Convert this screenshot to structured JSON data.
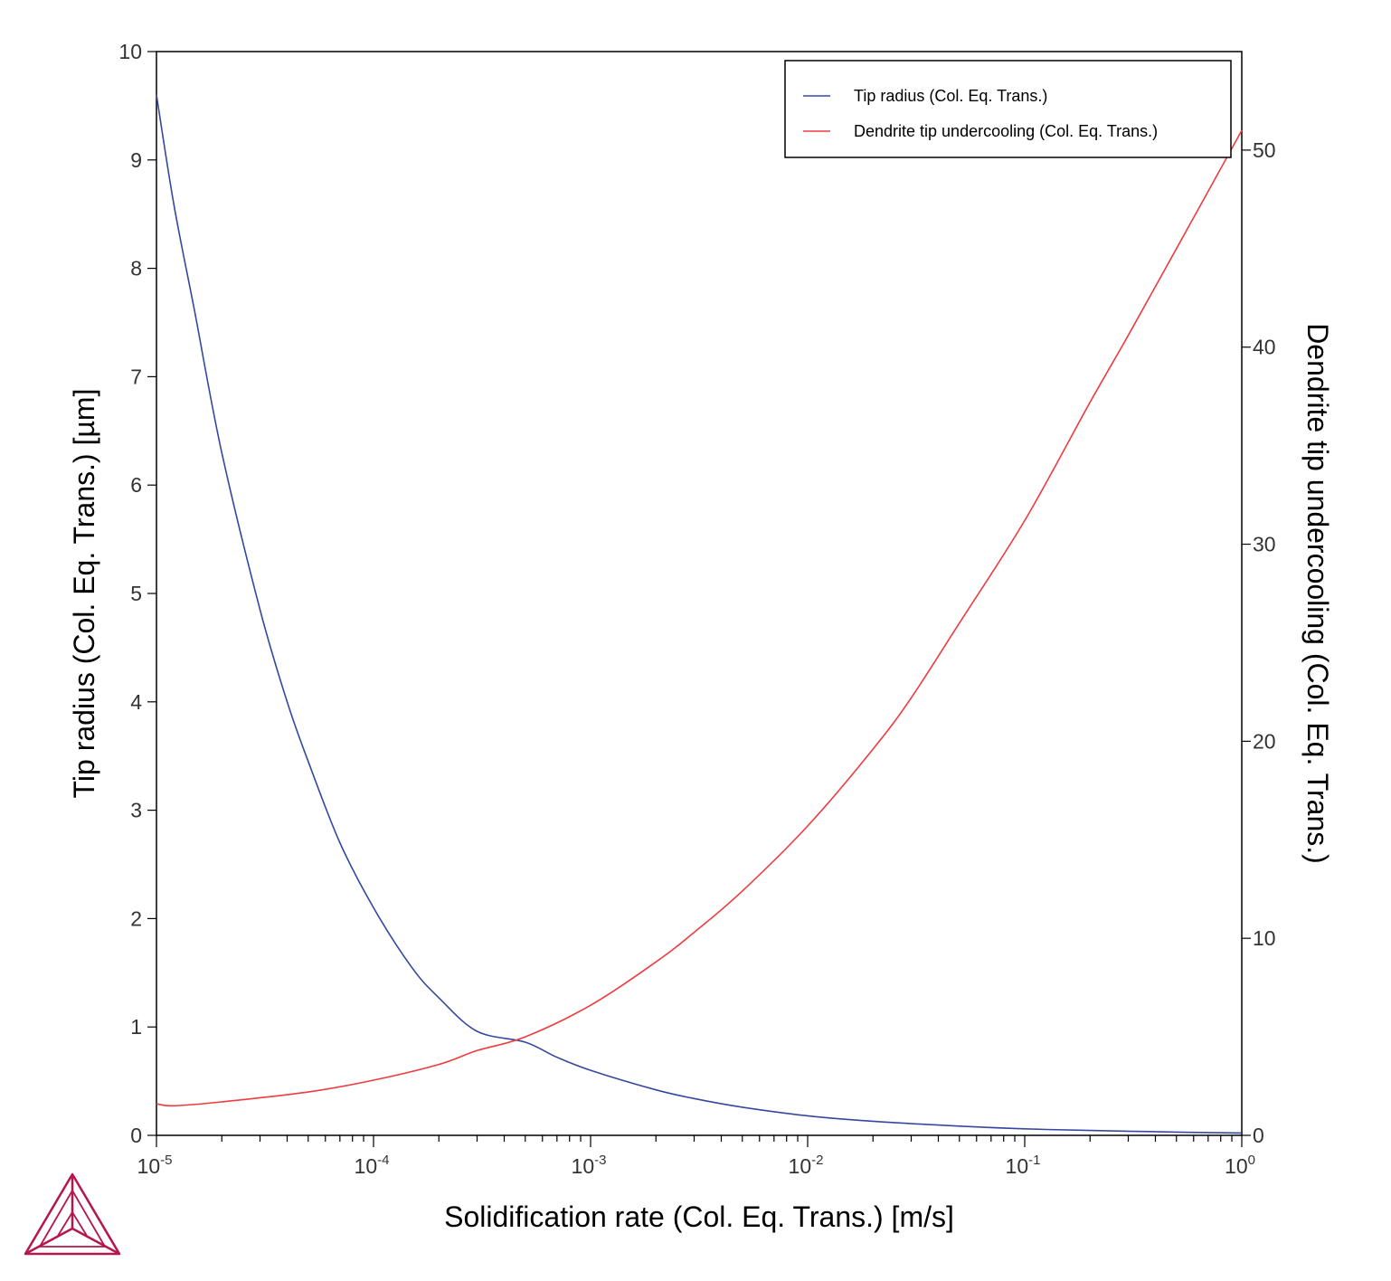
{
  "chart_data": {
    "type": "line",
    "xlabel": "Solidification rate (Col. Eq. Trans.) [m/s]",
    "ylabel": "Tip radius (Col. Eq. Trans.) [µm]",
    "y2label": "Dendrite tip undercooling (Col. Eq. Trans.)",
    "xscale": "log",
    "xlim": [
      1e-05,
      1
    ],
    "ylim": [
      0,
      10
    ],
    "y2lim": [
      0,
      55
    ],
    "x_ticks": [
      {
        "base": "10",
        "exp": "-5"
      },
      {
        "base": "10",
        "exp": "-4"
      },
      {
        "base": "10",
        "exp": "-3"
      },
      {
        "base": "10",
        "exp": "-2"
      },
      {
        "base": "10",
        "exp": "-1"
      },
      {
        "base": "10",
        "exp": "0"
      }
    ],
    "y_ticks": [
      "0",
      "1",
      "2",
      "3",
      "4",
      "5",
      "6",
      "7",
      "8",
      "9",
      "10"
    ],
    "y2_ticks": [
      "0",
      "10",
      "20",
      "30",
      "40",
      "50"
    ],
    "legend_position": "top-right",
    "grid": false,
    "series": [
      {
        "name": "Tip radius (Col. Eq. Trans.)",
        "axis": "left",
        "color": "#3548a0",
        "x": [
          1e-05,
          1.2e-05,
          1.5e-05,
          2e-05,
          3e-05,
          4e-05,
          5e-05,
          7e-05,
          0.0001,
          0.00015,
          0.0002,
          0.0003,
          0.0005,
          0.0007,
          0.001,
          0.002,
          0.003,
          0.005,
          0.01,
          0.02,
          0.05,
          0.1,
          0.2,
          0.5,
          1
        ],
        "y": [
          9.6,
          8.6,
          7.6,
          6.3,
          4.85,
          4.0,
          3.45,
          2.7,
          2.1,
          1.55,
          1.27,
          0.96,
          0.86,
          0.72,
          0.6,
          0.42,
          0.34,
          0.26,
          0.18,
          0.13,
          0.085,
          0.06,
          0.045,
          0.03,
          0.022
        ]
      },
      {
        "name": "Dendrite tip undercooling (Col. Eq. Trans.)",
        "axis": "right",
        "color": "#ee3b40",
        "x": [
          1e-05,
          1.2e-05,
          2e-05,
          5e-05,
          0.0001,
          0.0002,
          0.0003,
          0.0005,
          0.001,
          0.002,
          0.003,
          0.005,
          0.01,
          0.02,
          0.03,
          0.05,
          0.1,
          0.2,
          0.3,
          0.5,
          1
        ],
        "y": [
          1.6,
          1.5,
          1.7,
          2.2,
          2.8,
          3.6,
          4.3,
          5.0,
          6.6,
          8.8,
          10.3,
          12.4,
          15.7,
          19.6,
          22.2,
          26.0,
          31.2,
          37.2,
          40.6,
          45.0,
          51.0
        ]
      }
    ]
  }
}
